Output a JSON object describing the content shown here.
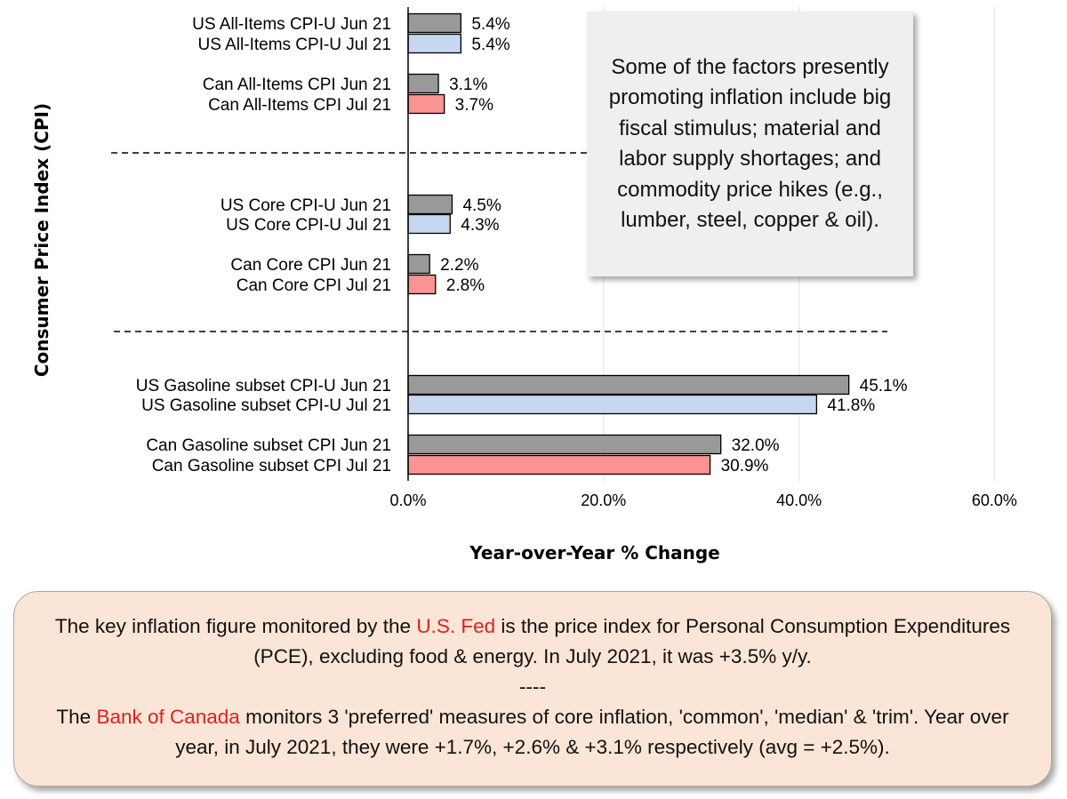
{
  "chart_data": {
    "type": "bar",
    "orientation": "horizontal",
    "ylabel": "Consumer Price Index (CPI)",
    "xlabel": "Year-over-Year % Change",
    "xlim": [
      0,
      60
    ],
    "x_ticks": [
      "0.0%",
      "20.0%",
      "40.0%",
      "60.0%"
    ],
    "grid": "vertical gridlines",
    "colors": {
      "jun": "#999999",
      "us_jul": "#c6d8f0",
      "can_jul": "#fb9393"
    },
    "categories": [
      "US All-Items CPI-U Jun 21",
      "US All-Items CPI-U Jul 21",
      "Can All-Items CPI Jun 21",
      "Can All-Items CPI Jul 21",
      "US Core CPI-U Jun 21",
      "US Core CPI-U Jul 21",
      "Can Core CPI Jun 21",
      "Can Core CPI Jul 21",
      "US Gasoline subset CPI-U Jun 21",
      "US Gasoline subset CPI-U Jul 21",
      "Can Gasoline subset CPI Jun 21",
      "Can Gasoline subset CPI Jul 21"
    ],
    "values": [
      5.4,
      5.4,
      3.1,
      3.7,
      4.5,
      4.3,
      2.2,
      2.8,
      45.1,
      41.8,
      32.0,
      30.9
    ],
    "value_labels": [
      "5.4%",
      "5.4%",
      "3.1%",
      "3.7%",
      "4.5%",
      "4.3%",
      "2.2%",
      "2.8%",
      "45.1%",
      "41.8%",
      "32.0%",
      "30.9%"
    ],
    "color_keys": [
      "jun",
      "us_jul",
      "jun",
      "can_jul",
      "jun",
      "us_jul",
      "jun",
      "can_jul",
      "jun",
      "us_jul",
      "jun",
      "can_jul"
    ]
  },
  "callout": {
    "text": "Some of the factors presently promoting inflation include big fiscal stimulus; material and labor supply shortages; and commodity price hikes (e.g., lumber, steel, copper & oil)."
  },
  "note": {
    "p1_before": "The key inflation figure monitored by the ",
    "p1_highlight": "U.S. Fed",
    "p1_after": " is the price index for Personal Consumption Expenditures (PCE), excluding food & energy. In July 2021, it was +3.5% y/y.",
    "separator": "----",
    "p2_before": "The ",
    "p2_highlight": "Bank of Canada",
    "p2_after": " monitors 3 'preferred' measures of core inflation, 'common', 'median' & 'trim'. Year over year, in July 2021, they were +1.7%, +2.6% & +3.1% respectively (avg = +2.5%).",
    "highlight_color": "#e02020"
  }
}
